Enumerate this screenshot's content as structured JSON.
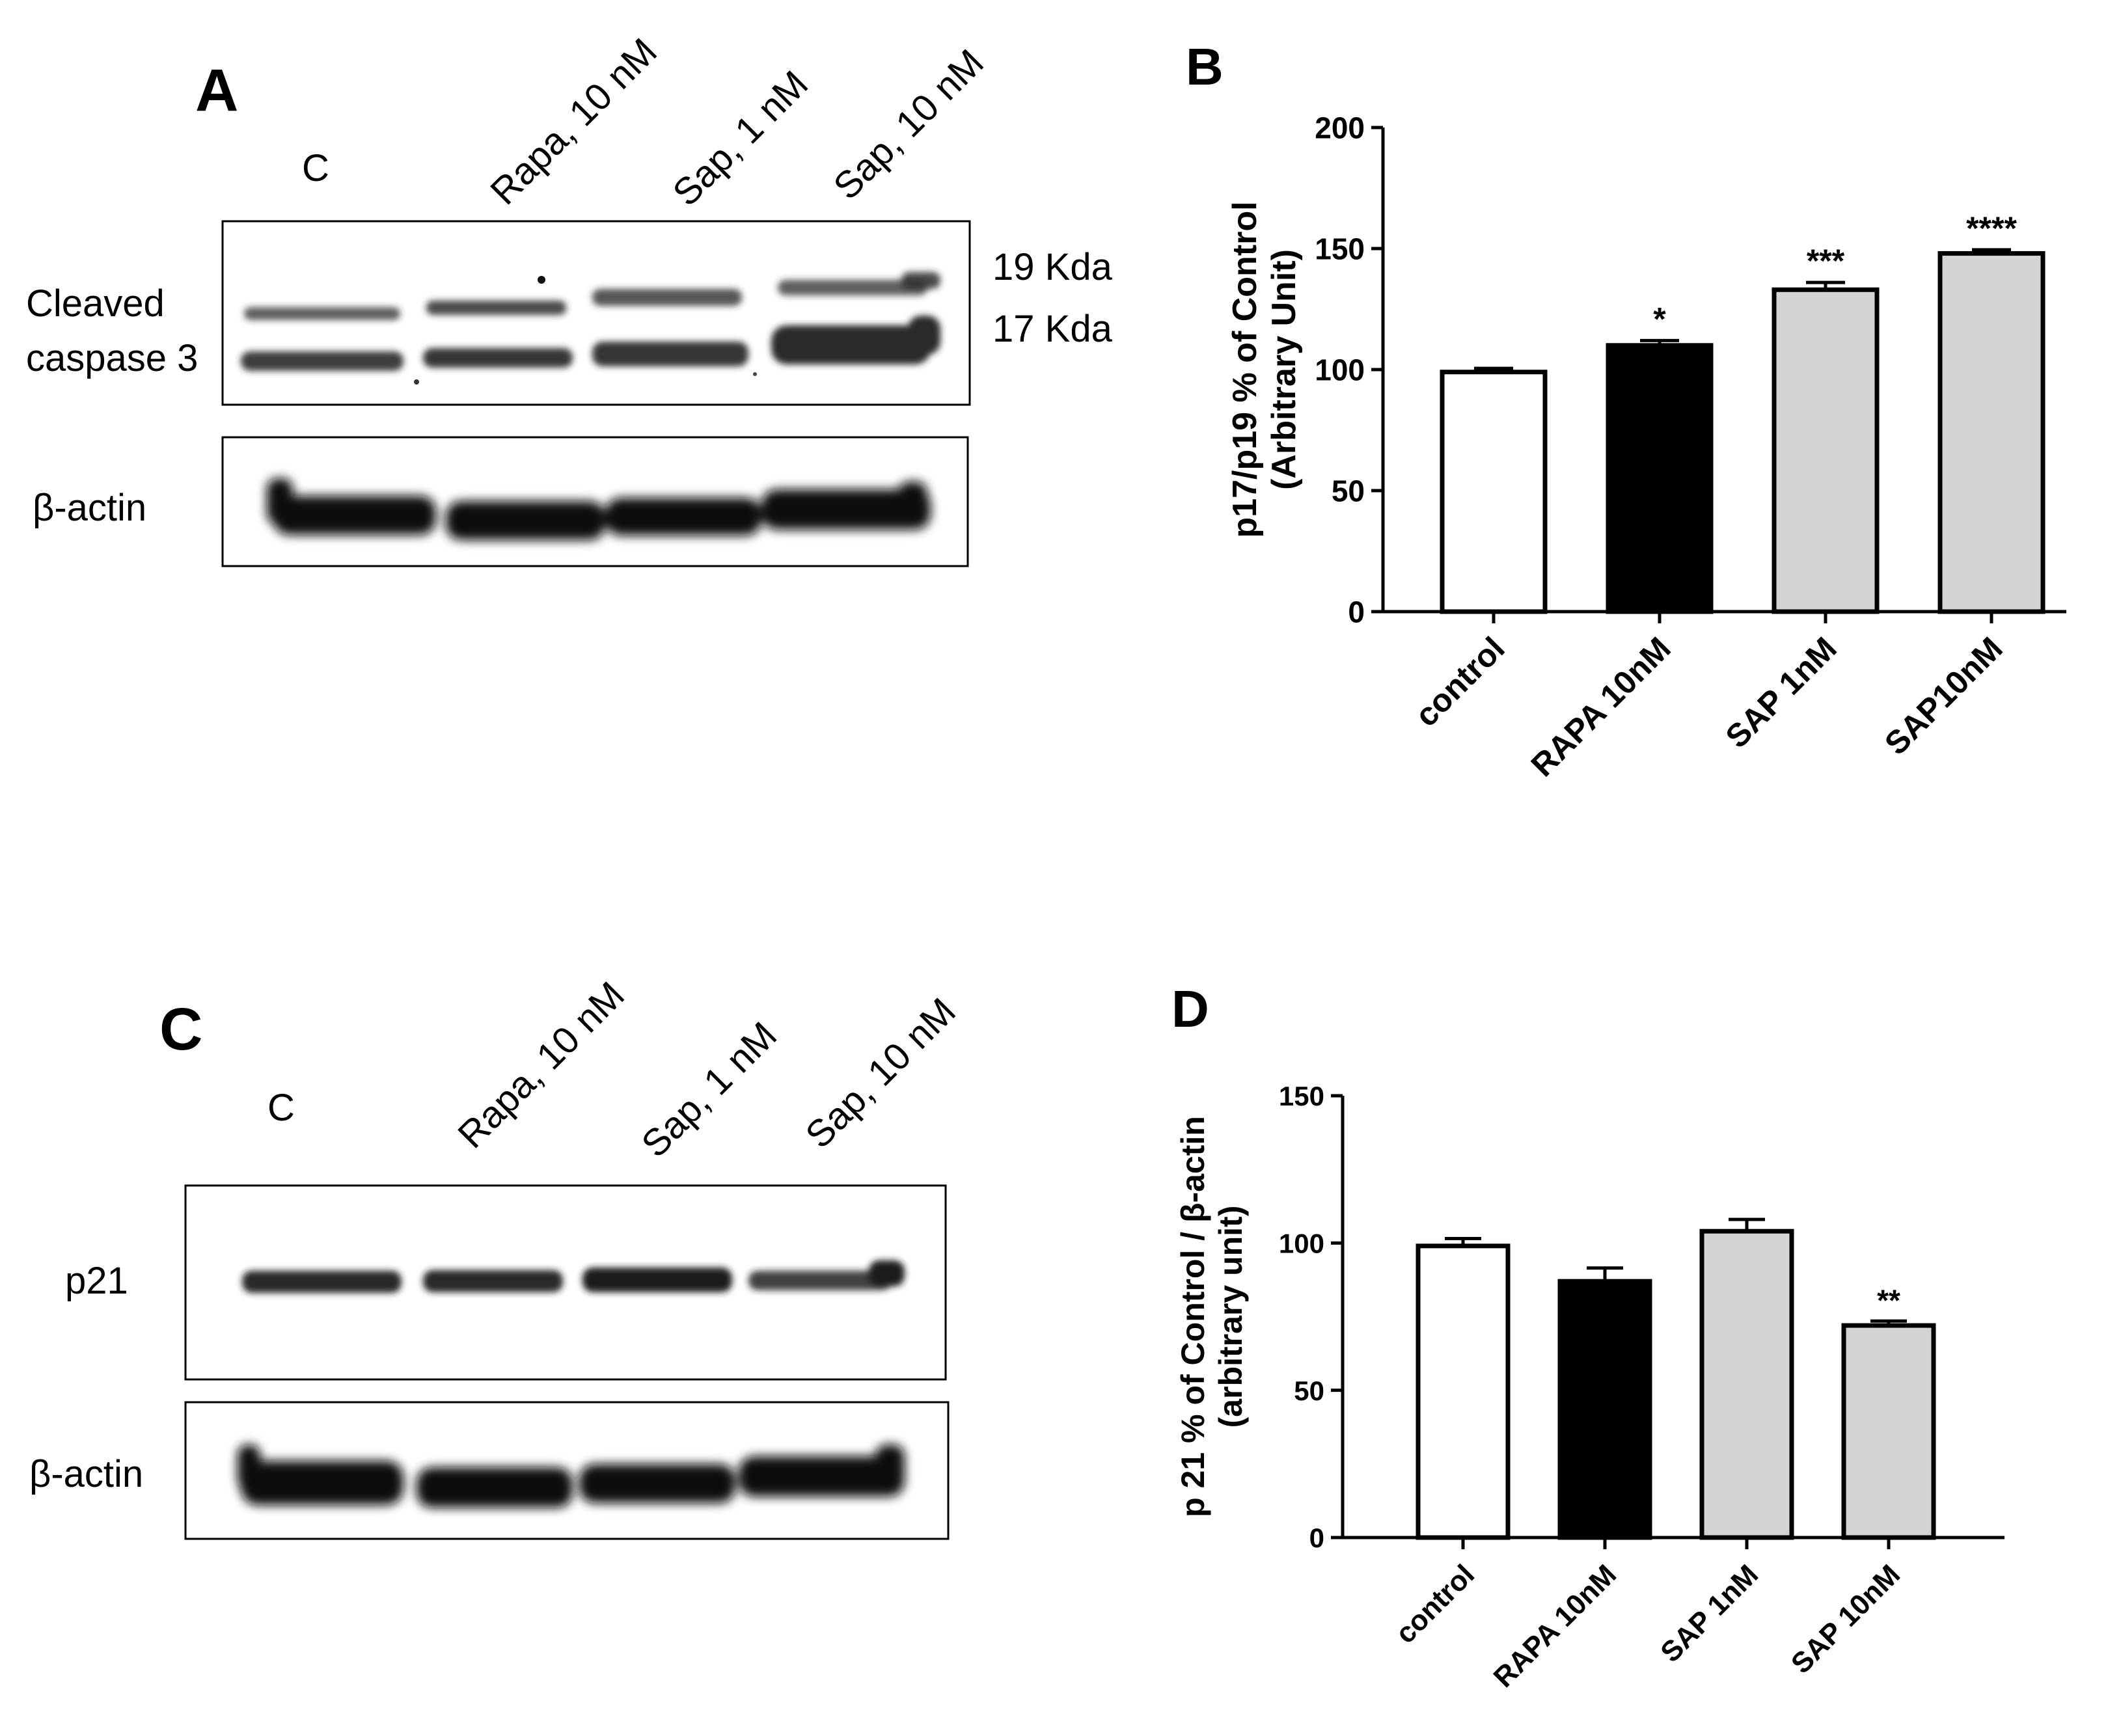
{
  "panels": {
    "A": {
      "letter": "A",
      "lanes": [
        "C",
        "Rapa, 10 nM",
        "Sap, 1 nM",
        "Sap, 10 nM"
      ],
      "caspase_label_line1": "Cleaved",
      "caspase_label_line2": "caspase 3",
      "actin_label": "β-actin",
      "marker_19": "19 Kda",
      "marker_17": "17 Kda"
    },
    "B": {
      "letter": "B"
    },
    "C": {
      "letter": "C",
      "lanes": [
        "C",
        "Rapa, 10 nM",
        "Sap, 1 nM",
        "Sap, 10 nM"
      ],
      "p21_label": "p21",
      "actin_label": "β-actin"
    },
    "D": {
      "letter": "D"
    }
  },
  "chart_data": [
    {
      "panel": "B",
      "type": "bar",
      "categories": [
        "control",
        "RAPA 10nM",
        "SAP 1nM",
        "SAP10nM"
      ],
      "values": [
        99,
        110,
        133,
        148
      ],
      "errors": [
        1.5,
        2,
        3,
        1.5
      ],
      "significance": [
        "",
        "*",
        "***",
        "****"
      ],
      "bar_colors": [
        "#ffffff",
        "#000000",
        "#d3d3d3",
        "#d3d3d3"
      ],
      "ylabel_line1": "p17/p19 % of Control",
      "ylabel_line2": "(Arbitrary Unit)",
      "ylim": [
        0,
        200
      ],
      "yticks": [
        0,
        50,
        100,
        150,
        200
      ],
      "grid": false
    },
    {
      "panel": "D",
      "type": "bar",
      "categories": [
        "control",
        "RAPA 10nM",
        "SAP 1nM",
        "SAP 10nM"
      ],
      "values": [
        99,
        87,
        104,
        72
      ],
      "errors": [
        2.5,
        4.5,
        4,
        1.5
      ],
      "significance": [
        "",
        "",
        "",
        "**"
      ],
      "bar_colors": [
        "#ffffff",
        "#000000",
        "#d3d3d3",
        "#d3d3d3"
      ],
      "ylabel_line1": "p 21 % of Control / β-actin",
      "ylabel_line2": "(arbitrary unit)",
      "ylim": [
        0,
        150
      ],
      "yticks": [
        0,
        50,
        100,
        150
      ],
      "grid": false
    }
  ]
}
